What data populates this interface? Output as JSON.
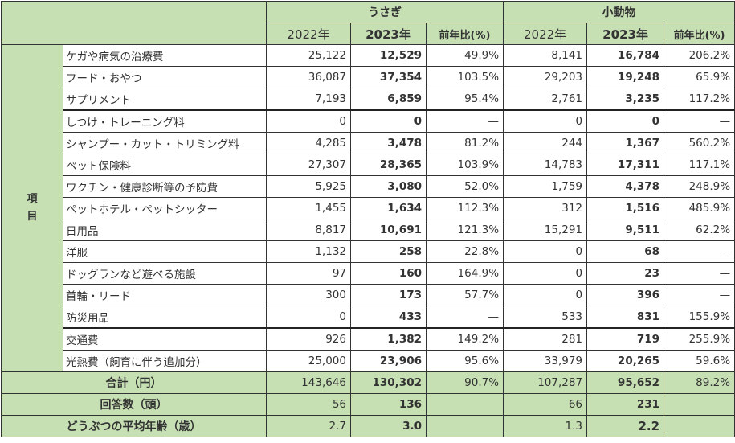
{
  "header": {
    "group1": "うさぎ",
    "group2": "小動物",
    "year_prev": "2022年",
    "year_curr": "2023年",
    "yoy": "前年比(%)"
  },
  "side_label": "項目",
  "rows": [
    {
      "label": "ケガや病気の治療費",
      "r22": "25,122",
      "r23": "12,529",
      "rp": "49.9%",
      "s22": "8,141",
      "s23": "16,784",
      "sp": "206.2%"
    },
    {
      "label": "フード・おやつ",
      "r22": "36,087",
      "r23": "37,354",
      "rp": "103.5%",
      "s22": "29,203",
      "s23": "19,248",
      "sp": "65.9%"
    },
    {
      "label": "サプリメント",
      "r22": "7,193",
      "r23": "6,859",
      "rp": "95.4%",
      "s22": "2,761",
      "s23": "3,235",
      "sp": "117.2%"
    },
    {
      "label": "しつけ・トレーニング料",
      "r22": "0",
      "r23": "0",
      "rp": "—",
      "s22": "0",
      "s23": "0",
      "sp": "—"
    },
    {
      "label": "シャンプー・カット・トリミング料",
      "r22": "4,285",
      "r23": "3,478",
      "rp": "81.2%",
      "s22": "244",
      "s23": "1,367",
      "sp": "560.2%"
    },
    {
      "label": "ペット保険料",
      "r22": "27,307",
      "r23": "28,365",
      "rp": "103.9%",
      "s22": "14,783",
      "s23": "17,311",
      "sp": "117.1%"
    },
    {
      "label": "ワクチン・健康診断等の予防費",
      "r22": "5,925",
      "r23": "3,080",
      "rp": "52.0%",
      "s22": "1,759",
      "s23": "4,378",
      "sp": "248.9%"
    },
    {
      "label": "ペットホテル・ペットシッター",
      "r22": "1,455",
      "r23": "1,634",
      "rp": "112.3%",
      "s22": "312",
      "s23": "1,516",
      "sp": "485.9%"
    },
    {
      "label": "日用品",
      "r22": "8,817",
      "r23": "10,691",
      "rp": "121.3%",
      "s22": "15,291",
      "s23": "9,511",
      "sp": "62.2%"
    },
    {
      "label": "洋服",
      "r22": "1,132",
      "r23": "258",
      "rp": "22.8%",
      "s22": "0",
      "s23": "68",
      "sp": "—"
    },
    {
      "label": "ドッグランなど遊べる施設",
      "r22": "97",
      "r23": "160",
      "rp": "164.9%",
      "s22": "0",
      "s23": "23",
      "sp": "—"
    },
    {
      "label": "首輪・リード",
      "r22": "300",
      "r23": "173",
      "rp": "57.7%",
      "s22": "0",
      "s23": "396",
      "sp": "—"
    },
    {
      "label": "防災用品",
      "r22": "0",
      "r23": "433",
      "rp": "—",
      "s22": "533",
      "s23": "831",
      "sp": "155.9%"
    },
    {
      "label": "交通費",
      "r22": "926",
      "r23": "1,382",
      "rp": "149.2%",
      "s22": "281",
      "s23": "719",
      "sp": "255.9%"
    },
    {
      "label": "光熱費（飼育に伴う追加分）",
      "r22": "25,000",
      "r23": "23,906",
      "rp": "95.6%",
      "s22": "33,979",
      "s23": "20,265",
      "sp": "59.6%"
    }
  ],
  "total": {
    "label": "合計（円）",
    "r22": "143,646",
    "r23": "130,302",
    "rp": "90.7%",
    "s22": "107,287",
    "s23": "95,652",
    "sp": "89.2%"
  },
  "respondents": {
    "label": "回答数（頭）",
    "r22": "56",
    "r23": "136",
    "s22": "66",
    "s23": "231"
  },
  "avg_age": {
    "label": "どうぶつの平均年齢（歳）",
    "r22": "2.7",
    "r23": "3.0",
    "s22": "1.3",
    "s23": "2.2"
  },
  "colors": {
    "header_bg": "#c6e0b4",
    "border": "#333333"
  }
}
